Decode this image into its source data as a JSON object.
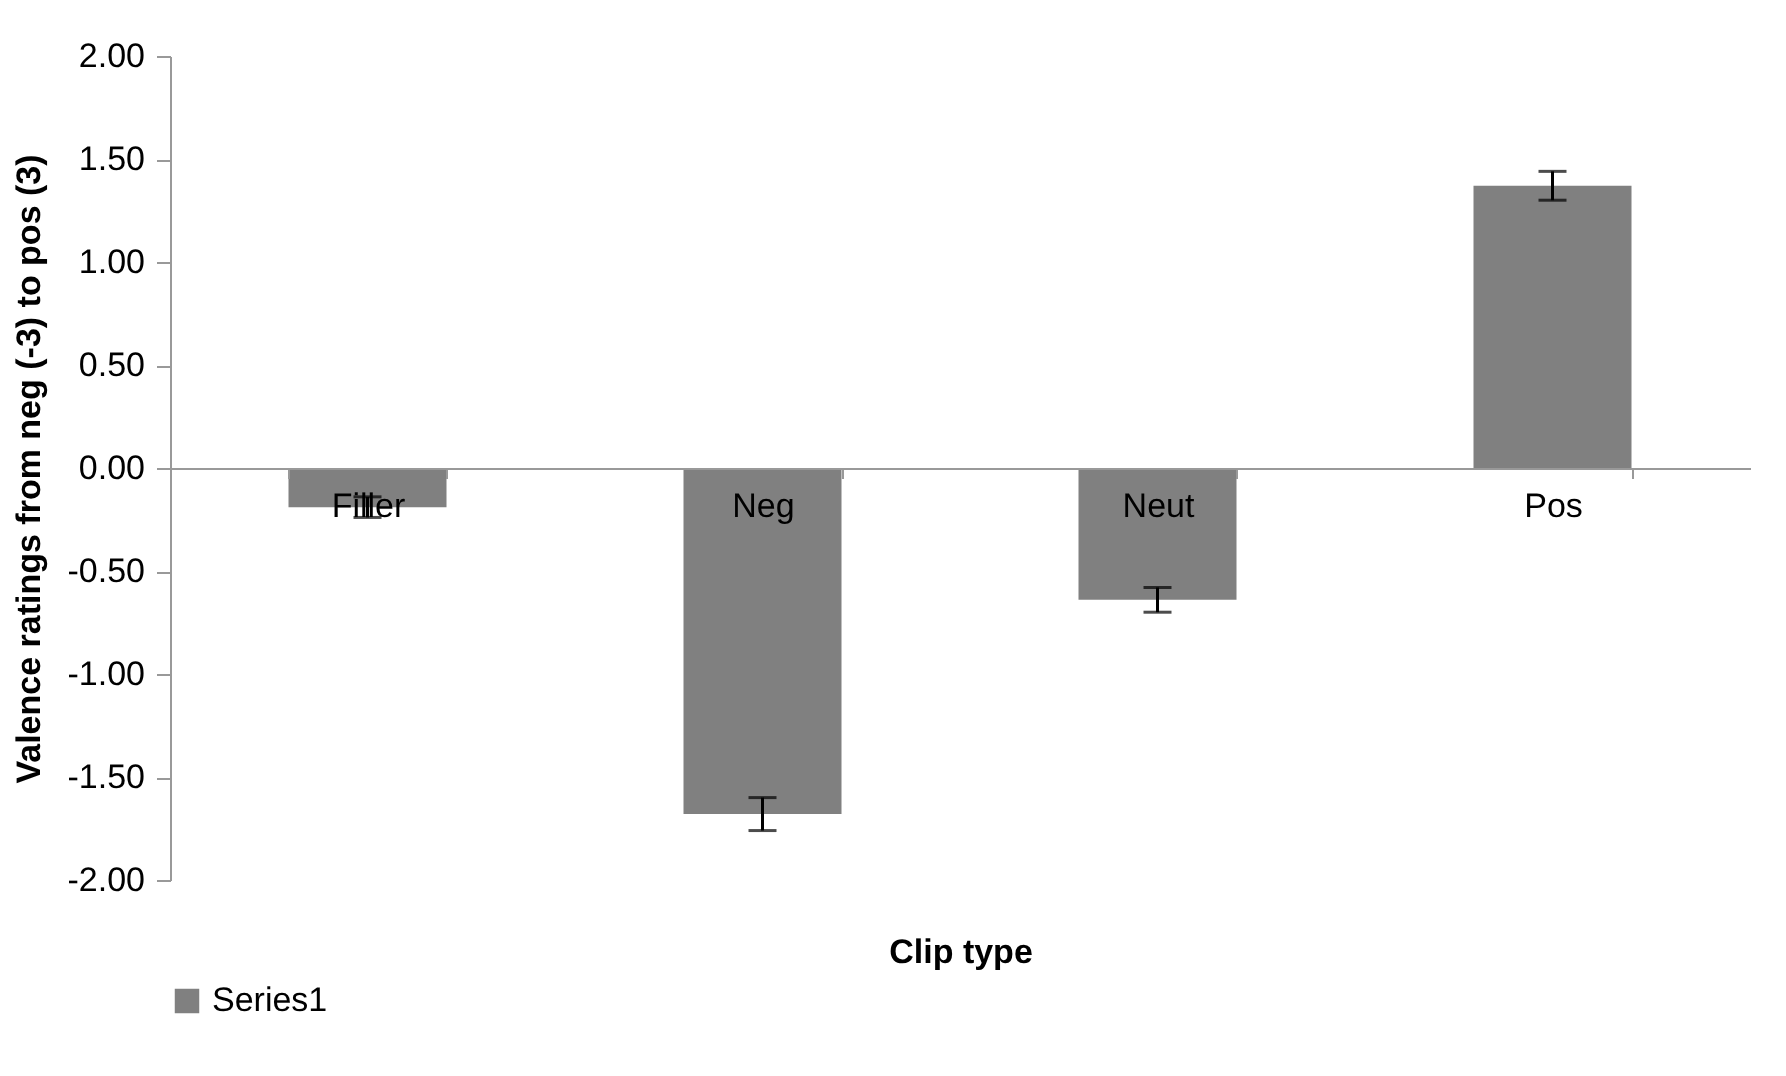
{
  "chart_data": {
    "type": "bar",
    "xlabel": "Clip type",
    "ylabel": "Valence ratings from neg (-3) to pos (3)",
    "categories": [
      "Filler",
      "Neg",
      "Neut",
      "Pos"
    ],
    "series": [
      {
        "name": "Series1",
        "color": "#808080",
        "values": [
          -0.19,
          -1.68,
          -0.64,
          1.37
        ],
        "errors": [
          0.05,
          0.08,
          0.06,
          0.07
        ]
      }
    ],
    "ylim": [
      -2,
      2
    ],
    "yticks": [
      {
        "value": -2,
        "label": "-2.00"
      },
      {
        "value": -1.5,
        "label": "-1.50"
      },
      {
        "value": -1,
        "label": "-1.00"
      },
      {
        "value": -0.5,
        "label": "-0.50"
      },
      {
        "value": 0,
        "label": "0.00"
      },
      {
        "value": 0.5,
        "label": "0.50"
      },
      {
        "value": 1,
        "label": "1.00"
      },
      {
        "value": 1.5,
        "label": "1.50"
      },
      {
        "value": 2,
        "label": "2.00"
      }
    ],
    "grid": false,
    "legend": "bottom"
  }
}
